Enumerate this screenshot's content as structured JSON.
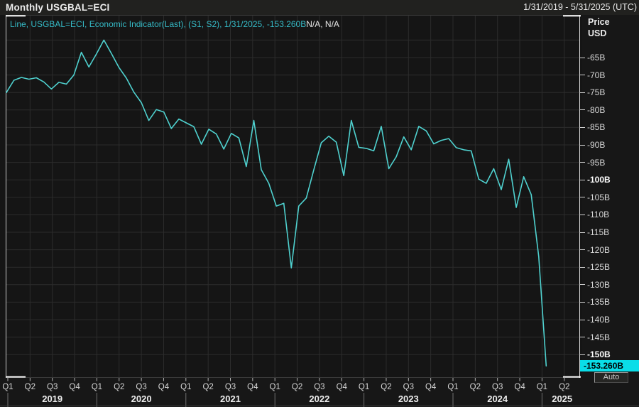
{
  "header": {
    "title": "Monthly USGBAL=ECI",
    "date_range": "1/31/2019 - 5/31/2025 (UTC)"
  },
  "legend": {
    "series_label": "Line, USGBAL=ECI, Economic Indicator(Last), (S1, S2), 1/31/2025, -153.260B",
    "extra_label": "N/A, N/A"
  },
  "y_axis": {
    "title_line1": "Price",
    "title_line2": "USD",
    "ticks": [
      {
        "label": "-65B",
        "value": -65,
        "bold": false
      },
      {
        "label": "-70B",
        "value": -70,
        "bold": false
      },
      {
        "label": "-75B",
        "value": -75,
        "bold": false
      },
      {
        "label": "-80B",
        "value": -80,
        "bold": false
      },
      {
        "label": "-85B",
        "value": -85,
        "bold": false
      },
      {
        "label": "-90B",
        "value": -90,
        "bold": false
      },
      {
        "label": "-95B",
        "value": -95,
        "bold": false
      },
      {
        "label": "-100B",
        "value": -100,
        "bold": true
      },
      {
        "label": "-105B",
        "value": -105,
        "bold": false
      },
      {
        "label": "-110B",
        "value": -110,
        "bold": false
      },
      {
        "label": "-115B",
        "value": -115,
        "bold": false
      },
      {
        "label": "-120B",
        "value": -120,
        "bold": false
      },
      {
        "label": "-125B",
        "value": -125,
        "bold": false
      },
      {
        "label": "-130B",
        "value": -130,
        "bold": false
      },
      {
        "label": "-135B",
        "value": -135,
        "bold": false
      },
      {
        "label": "-140B",
        "value": -140,
        "bold": false
      },
      {
        "label": "-145B",
        "value": -145,
        "bold": false
      },
      {
        "label": "-150B",
        "value": -150,
        "bold": true
      }
    ],
    "last_price_badge": {
      "label": "-153.260B",
      "value": -153.26
    },
    "auto_button_label": "Auto"
  },
  "x_axis": {
    "quarter_labels": [
      "Q1",
      "Q2",
      "Q3",
      "Q4",
      "Q1",
      "Q2",
      "Q3",
      "Q4",
      "Q1",
      "Q2",
      "Q3",
      "Q4",
      "Q1",
      "Q2",
      "Q3",
      "Q4",
      "Q1",
      "Q2",
      "Q3",
      "Q4",
      "Q1",
      "Q2",
      "Q3",
      "Q4",
      "Q1",
      "Q2"
    ],
    "year_separator_quarters": [
      0,
      4,
      8,
      12,
      16,
      20,
      24
    ],
    "years": [
      {
        "label": "2019",
        "start_q": 0,
        "end_q": 4
      },
      {
        "label": "2020",
        "start_q": 4,
        "end_q": 8
      },
      {
        "label": "2021",
        "start_q": 8,
        "end_q": 12
      },
      {
        "label": "2022",
        "start_q": 12,
        "end_q": 16
      },
      {
        "label": "2023",
        "start_q": 16,
        "end_q": 20
      },
      {
        "label": "2024",
        "start_q": 20,
        "end_q": 24
      },
      {
        "label": "2025",
        "start_q": 24,
        "end_q": 26
      }
    ]
  },
  "chart_data": {
    "type": "line",
    "title": "Monthly USGBAL=ECI",
    "series_name": "USGBAL=ECI Economic Indicator (Last)",
    "unit": "USD billions",
    "ylabel": "Price USD",
    "ylim": [
      -157,
      -58
    ],
    "xlim": [
      "2019-01-31",
      "2025-05-31"
    ],
    "grid": true,
    "y_gridline_step_billions": 5,
    "last_point": {
      "date": "1/31/2025",
      "value": -153.26
    },
    "x": [
      "2019-01",
      "2019-02",
      "2019-03",
      "2019-04",
      "2019-05",
      "2019-06",
      "2019-07",
      "2019-08",
      "2019-09",
      "2019-10",
      "2019-11",
      "2019-12",
      "2020-01",
      "2020-02",
      "2020-03",
      "2020-04",
      "2020-05",
      "2020-06",
      "2020-07",
      "2020-08",
      "2020-09",
      "2020-10",
      "2020-11",
      "2020-12",
      "2021-01",
      "2021-02",
      "2021-03",
      "2021-04",
      "2021-05",
      "2021-06",
      "2021-07",
      "2021-08",
      "2021-09",
      "2021-10",
      "2021-11",
      "2021-12",
      "2022-01",
      "2022-02",
      "2022-03",
      "2022-04",
      "2022-05",
      "2022-06",
      "2022-07",
      "2022-08",
      "2022-09",
      "2022-10",
      "2022-11",
      "2022-12",
      "2023-01",
      "2023-02",
      "2023-03",
      "2023-04",
      "2023-05",
      "2023-06",
      "2023-07",
      "2023-08",
      "2023-09",
      "2023-10",
      "2023-11",
      "2023-12",
      "2024-01",
      "2024-02",
      "2024-03",
      "2024-04",
      "2024-05",
      "2024-06",
      "2024-07",
      "2024-08",
      "2024-09",
      "2024-10",
      "2024-11",
      "2024-12",
      "2025-01"
    ],
    "values": [
      -75.0,
      -71.5,
      -70.7,
      -71.2,
      -70.8,
      -72.0,
      -74.0,
      -72.1,
      -72.6,
      -70.0,
      -63.5,
      -67.7,
      -64.0,
      -60.0,
      -63.8,
      -67.8,
      -70.9,
      -74.9,
      -77.9,
      -83.0,
      -79.9,
      -80.6,
      -85.3,
      -82.6,
      -83.7,
      -84.8,
      -89.8,
      -85.5,
      -86.9,
      -91.2,
      -86.7,
      -88.0,
      -96.2,
      -83.0,
      -97.1,
      -101.0,
      -107.5,
      -106.7,
      -125.2,
      -107.5,
      -105.2,
      -97.1,
      -89.4,
      -87.5,
      -89.2,
      -98.8,
      -83.0,
      -90.7,
      -91.0,
      -91.7,
      -84.7,
      -96.8,
      -93.4,
      -87.7,
      -91.4,
      -84.7,
      -86.0,
      -89.7,
      -88.7,
      -88.2,
      -90.8,
      -91.4,
      -91.7,
      -99.8,
      -101.0,
      -96.8,
      -102.8,
      -94.1,
      -107.9,
      -99.1,
      -104.2,
      -122.0,
      -153.26
    ]
  },
  "colors": {
    "background": "#171717",
    "titlebar_background": "#21211f",
    "plot_background": "#151515",
    "grid": "#2c2c2c",
    "line": "#4fd1cf",
    "legend_text": "#35bac6",
    "text": "#e9e9e9",
    "axis_text": "#d6d6d6",
    "badge_background": "#0adde8",
    "badge_text": "#000000",
    "frame": "#3a3a3a",
    "frame_light": "#ffffff"
  }
}
